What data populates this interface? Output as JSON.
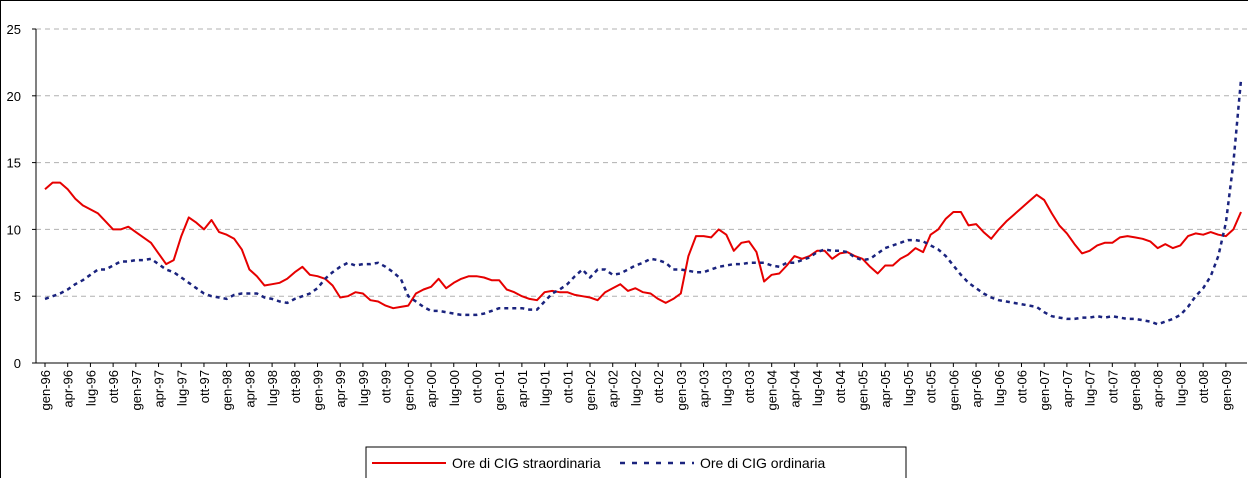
{
  "chart_data": {
    "type": "line",
    "categories": [
      "gen-96",
      null,
      null,
      "apr-96",
      null,
      null,
      "lug-96",
      null,
      null,
      "ott-96",
      null,
      null,
      "gen-97",
      null,
      null,
      "apr-97",
      null,
      null,
      "lug-97",
      null,
      null,
      "ott-97",
      null,
      null,
      "gen-98",
      null,
      null,
      "apr-98",
      null,
      null,
      "lug-98",
      null,
      null,
      "ott-98",
      null,
      null,
      "gen-99",
      null,
      null,
      "apr-99",
      null,
      null,
      "lug-99",
      null,
      null,
      "ott-99",
      null,
      null,
      "gen-00",
      null,
      null,
      "apr-00",
      null,
      null,
      "lug-00",
      null,
      null,
      "ott-00",
      null,
      null,
      "gen-01",
      null,
      null,
      "apr-01",
      null,
      null,
      "lug-01",
      null,
      null,
      "ott-01",
      null,
      null,
      "gen-02",
      null,
      null,
      "apr-02",
      null,
      null,
      "lug-02",
      null,
      null,
      "ott-02",
      null,
      null,
      "gen-03",
      null,
      null,
      "apr-03",
      null,
      null,
      "lug-03",
      null,
      null,
      "ott-03",
      null,
      null,
      "gen-04",
      null,
      null,
      "apr-04",
      null,
      null,
      "lug-04",
      null,
      null,
      "ott-04",
      null,
      null,
      "gen-05",
      null,
      null,
      "apr-05",
      null,
      null,
      "lug-05",
      null,
      null,
      "ott-05",
      null,
      null,
      "gen-06",
      null,
      null,
      "apr-06",
      null,
      null,
      "lug-06",
      null,
      null,
      "ott-06",
      null,
      null,
      "gen-07",
      null,
      null,
      "apr-07",
      null,
      null,
      "lug-07",
      null,
      null,
      "ott-07",
      null,
      null,
      "gen-08",
      null,
      null,
      "apr-08",
      null,
      null,
      "lug-08",
      null,
      null,
      "ott-08",
      null,
      null,
      "gen-09",
      null,
      null
    ],
    "series": [
      {
        "name": "Ore di CIG straordinaria",
        "color": "#e60000",
        "dash": false,
        "values": [
          13.0,
          13.5,
          13.5,
          13.0,
          12.3,
          11.8,
          11.5,
          11.2,
          10.6,
          10.0,
          10.0,
          10.2,
          9.8,
          9.4,
          9.0,
          8.2,
          7.4,
          7.7,
          9.5,
          10.9,
          10.5,
          10.0,
          10.7,
          9.8,
          9.6,
          9.3,
          8.5,
          7.0,
          6.5,
          5.8,
          5.9,
          6.0,
          6.3,
          6.8,
          7.2,
          6.6,
          6.5,
          6.3,
          5.8,
          4.9,
          5.0,
          5.3,
          5.2,
          4.7,
          4.6,
          4.3,
          4.1,
          4.2,
          4.3,
          5.2,
          5.5,
          5.7,
          6.3,
          5.6,
          6.0,
          6.3,
          6.5,
          6.5,
          6.4,
          6.2,
          6.2,
          5.5,
          5.3,
          5.0,
          4.8,
          4.7,
          5.3,
          5.4,
          5.3,
          5.3,
          5.1,
          5.0,
          4.9,
          4.7,
          5.3,
          5.6,
          5.9,
          5.4,
          5.6,
          5.3,
          5.2,
          4.8,
          4.5,
          4.8,
          5.2,
          8.0,
          9.5,
          9.5,
          9.4,
          10.0,
          9.6,
          8.4,
          9.0,
          9.1,
          8.3,
          6.1,
          6.6,
          6.7,
          7.3,
          8.0,
          7.8,
          8.0,
          8.4,
          8.4,
          7.8,
          8.2,
          8.3,
          8.0,
          7.8,
          7.2,
          6.7,
          7.3,
          7.3,
          7.8,
          8.1,
          8.6,
          8.3,
          9.6,
          10.0,
          10.8,
          11.3,
          11.3,
          10.3,
          10.4,
          9.8,
          9.3,
          10.0,
          10.6,
          11.1,
          11.6,
          12.1,
          12.6,
          12.2,
          11.2,
          10.3,
          9.7,
          8.9,
          8.2,
          8.4,
          8.8,
          9.0,
          9.0,
          9.4,
          9.5,
          9.4,
          9.3,
          9.1,
          8.6,
          8.9,
          8.6,
          8.8,
          9.5,
          9.7,
          9.6,
          9.8,
          9.6,
          9.5,
          10.0,
          11.3
        ]
      },
      {
        "name": "Ore di CIG ordinaria",
        "color": "#1a237e",
        "dash": true,
        "values": [
          4.8,
          5.0,
          5.2,
          5.5,
          5.9,
          6.2,
          6.6,
          7.0,
          7.0,
          7.3,
          7.6,
          7.6,
          7.7,
          7.7,
          7.8,
          7.4,
          7.0,
          6.8,
          6.4,
          6.0,
          5.6,
          5.2,
          5.0,
          4.9,
          4.8,
          5.1,
          5.2,
          5.2,
          5.2,
          4.9,
          4.8,
          4.6,
          4.5,
          4.8,
          5.0,
          5.2,
          5.6,
          6.3,
          6.8,
          7.2,
          7.5,
          7.3,
          7.4,
          7.4,
          7.5,
          7.2,
          6.8,
          6.3,
          5.0,
          4.6,
          4.2,
          3.9,
          3.9,
          3.8,
          3.7,
          3.6,
          3.6,
          3.6,
          3.7,
          3.9,
          4.1,
          4.1,
          4.1,
          4.1,
          4.0,
          4.0,
          4.6,
          5.2,
          5.5,
          5.9,
          6.5,
          7.0,
          6.4,
          7.0,
          7.0,
          6.6,
          6.7,
          7.0,
          7.3,
          7.5,
          7.8,
          7.7,
          7.5,
          7.0,
          7.0,
          6.9,
          6.8,
          6.8,
          7.0,
          7.2,
          7.3,
          7.4,
          7.4,
          7.5,
          7.5,
          7.5,
          7.3,
          7.2,
          7.5,
          7.5,
          7.7,
          7.9,
          8.3,
          8.5,
          8.4,
          8.4,
          8.3,
          7.9,
          7.7,
          7.8,
          8.2,
          8.6,
          8.8,
          9.0,
          9.2,
          9.2,
          9.1,
          8.8,
          8.5,
          8.0,
          7.3,
          6.6,
          6.0,
          5.6,
          5.2,
          4.9,
          4.7,
          4.6,
          4.5,
          4.4,
          4.3,
          4.2,
          3.8,
          3.5,
          3.4,
          3.3,
          3.3,
          3.4,
          3.4,
          3.5,
          3.4,
          3.5,
          3.4,
          3.3,
          3.3,
          3.2,
          3.1,
          2.9,
          3.1,
          3.3,
          3.6,
          4.2,
          5.0,
          5.6,
          6.5,
          8.0,
          10.5,
          15.0,
          21.2
        ]
      }
    ],
    "ylim": [
      0,
      25
    ],
    "yticks": [
      0,
      5,
      10,
      15,
      20,
      25
    ],
    "grid": true,
    "legend": "bottom"
  }
}
